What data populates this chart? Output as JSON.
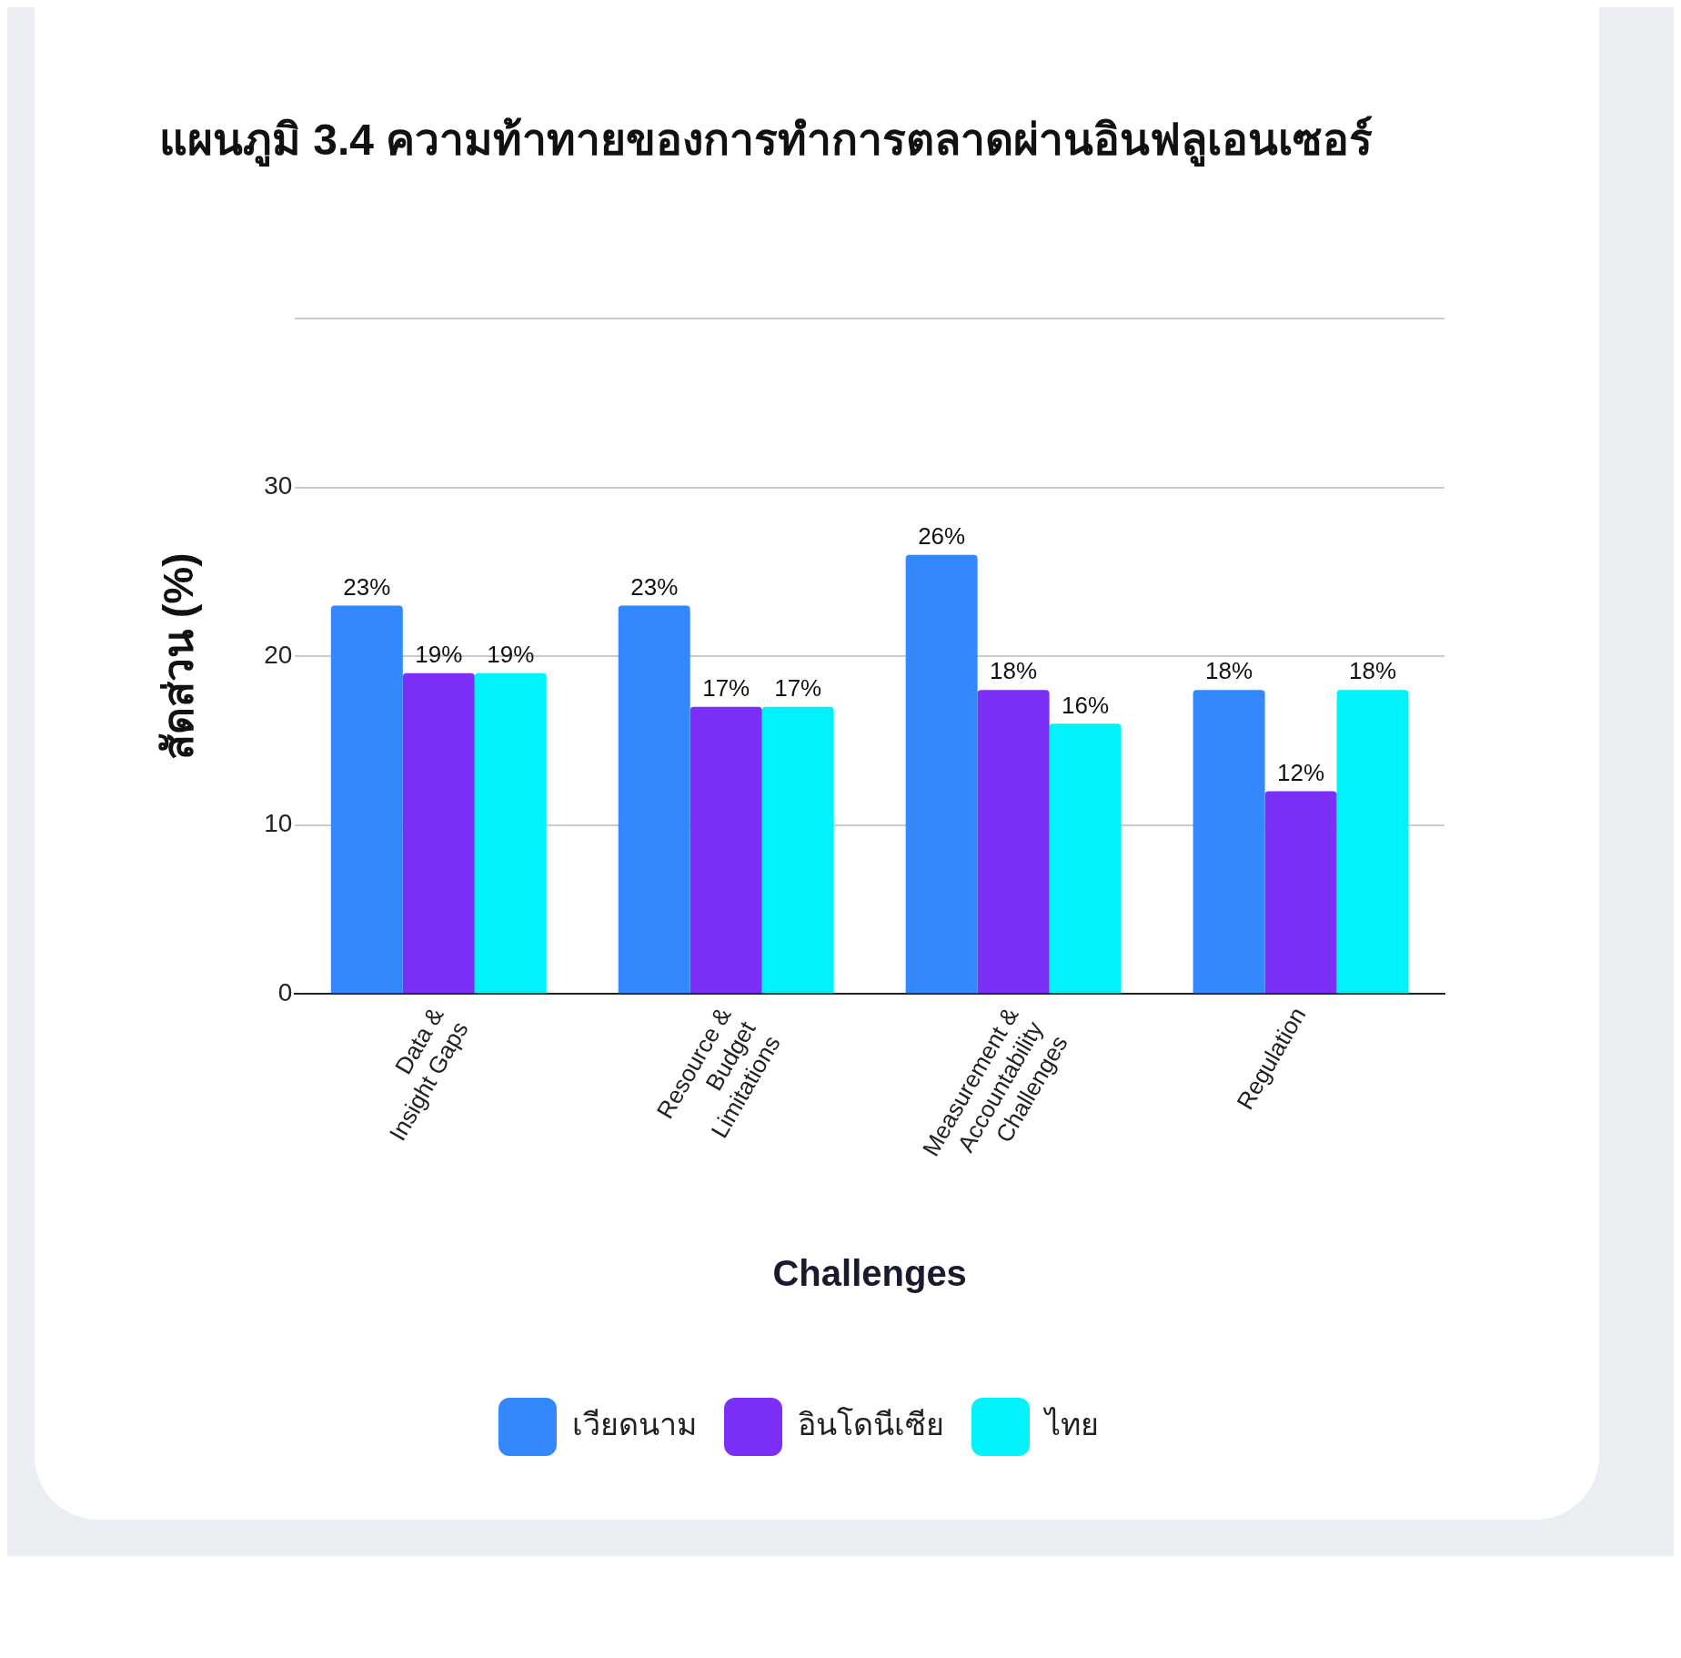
{
  "chart_data": {
    "type": "bar",
    "title": "แผนภูมิ 3.4 ความท้าทายของการทำการตลาดผ่านอินฟลูเอนเซอร์",
    "xlabel": "Challenges",
    "ylabel": "สัดส่วน (%)",
    "categories": [
      "Data &\nInsight Gaps",
      "Resource &\nBudget\nLimitations",
      "Measurement &\nAccountability\nChallenges",
      "Regulation"
    ],
    "series": [
      {
        "name": "เวียดนาม",
        "color": "#3388fd",
        "values": [
          23,
          23,
          26,
          18
        ],
        "value_labels": [
          "23%",
          "23%",
          "26%",
          "18%"
        ]
      },
      {
        "name": "อินโดนีเซีย",
        "color": "#7b2ff7",
        "values": [
          19,
          17,
          18,
          12
        ],
        "value_labels": [
          "19%",
          "17%",
          "18%",
          "12%"
        ]
      },
      {
        "name": "ไทย",
        "color": "#00f3fb",
        "values": [
          19,
          17,
          16,
          18
        ],
        "value_labels": [
          "19%",
          "17%",
          "16%",
          "18%"
        ]
      }
    ],
    "ylim": [
      0,
      40
    ],
    "yticks": [
      0,
      10,
      20,
      30,
      {
        "value": 40,
        "label": null
      }
    ],
    "grid": "y",
    "legend": "bottom"
  }
}
